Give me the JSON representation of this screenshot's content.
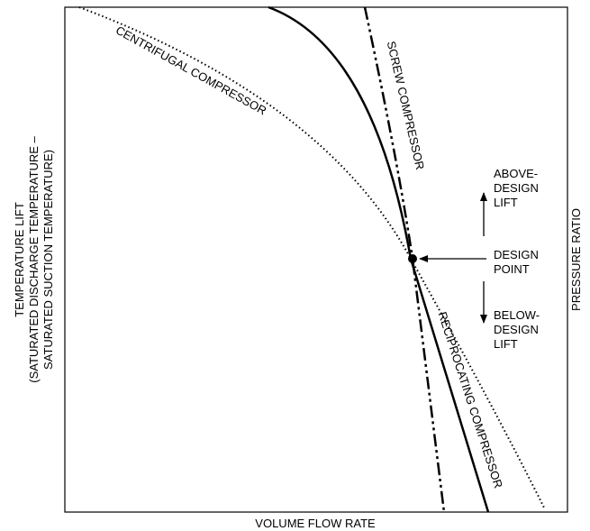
{
  "diagram": {
    "x_axis_label": "VOLUME FLOW RATE",
    "y_axis_label": [
      "TEMPERATURE LIFT",
      "(SATURATED DISCHARGE TEMPERATURE –",
      "SATURATED SUCTION TEMPERATURE)"
    ],
    "right_axis_label": "PRESSURE RATIO",
    "curves": [
      {
        "label": "CENTRIFUGAL COMPRESSOR"
      },
      {
        "label": "SCREW COMPRESSOR"
      },
      {
        "label": "RECIPROCATING COMPRESSOR"
      }
    ],
    "annotations": {
      "above": [
        "ABOVE-",
        "DESIGN",
        "LIFT"
      ],
      "design_point": [
        "DESIGN",
        "POINT"
      ],
      "below": [
        "BELOW-",
        "DESIGN",
        "LIFT"
      ]
    }
  }
}
